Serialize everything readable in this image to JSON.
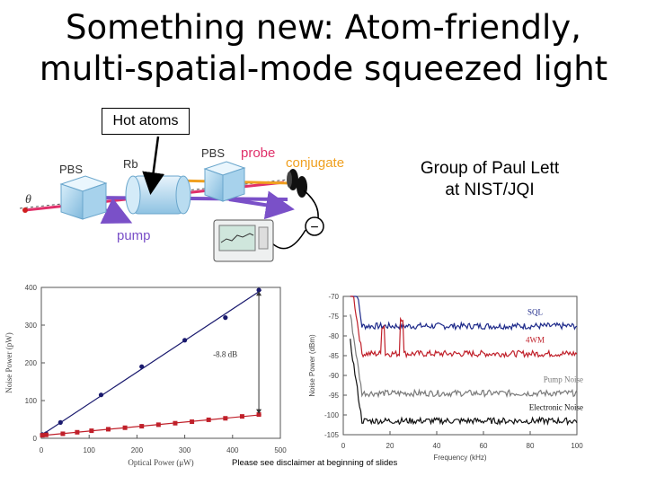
{
  "title": {
    "line1": "Something new:  Atom-friendly,",
    "line2": "multi-spatial-mode squeezed light"
  },
  "hot_atoms_label": "Hot atoms",
  "group_label": {
    "line1": "Group of Paul Lett",
    "line2": "at NIST/JQI"
  },
  "disclaimer": "Please see disclaimer at beginning of slides",
  "setup": {
    "pbs_left": "PBS",
    "rb": "Rb",
    "pbs_right": "PBS",
    "probe": "probe",
    "conjugate": "conjugate",
    "pump": "pump",
    "theta": "θ",
    "detector_sign": "−",
    "colors": {
      "probe": "#e0306a",
      "conjugate": "#f0a020",
      "pump": "#7a50c8"
    }
  },
  "chart_data": [
    {
      "type": "scatter",
      "xlabel": "Optical Power (μW)",
      "ylabel": "Noise Power (pW)",
      "xlim": [
        0,
        500
      ],
      "ylim": [
        0,
        400
      ],
      "xticks": [
        "0",
        "100",
        "200",
        "300",
        "400",
        "500"
      ],
      "yticks": [
        "0",
        "100",
        "200",
        "300",
        "400"
      ],
      "annotation": "-8.8 dB",
      "series": [
        {
          "marker": "circle",
          "color": "#1a1a6e",
          "x": [
            2,
            10,
            40,
            125,
            210,
            300,
            385,
            455
          ],
          "y": [
            10,
            12,
            42,
            115,
            190,
            260,
            320,
            393
          ]
        },
        {
          "marker": "square",
          "color": "#c0202a",
          "x": [
            2,
            10,
            45,
            75,
            105,
            140,
            175,
            210,
            245,
            280,
            315,
            350,
            385,
            420,
            455
          ],
          "y": [
            8,
            9,
            12,
            16,
            20,
            24,
            28,
            32,
            36,
            40,
            44,
            49,
            53,
            58,
            63
          ]
        }
      ]
    },
    {
      "type": "line",
      "xlabel": "Frequency (kHz)",
      "ylabel": "Noise Power (dBm)",
      "xlim": [
        0,
        100
      ],
      "ylim": [
        -105,
        -70
      ],
      "xticks": [
        "0",
        "20",
        "40",
        "60",
        "80",
        "100"
      ],
      "yticks": [
        "-70",
        "-75",
        "-80",
        "-85",
        "-90",
        "-95",
        "-100",
        "-105"
      ],
      "series": [
        {
          "name": "SQL",
          "color": "#1e2a8a",
          "level": -77.5
        },
        {
          "name": "4WM",
          "color": "#c0202a",
          "level": -84.5
        },
        {
          "name": "Pump Noise",
          "color": "#7a7a7a",
          "level": -94.5
        },
        {
          "name": "Electronic Noise",
          "color": "#111111",
          "level": -101.5
        }
      ]
    }
  ]
}
